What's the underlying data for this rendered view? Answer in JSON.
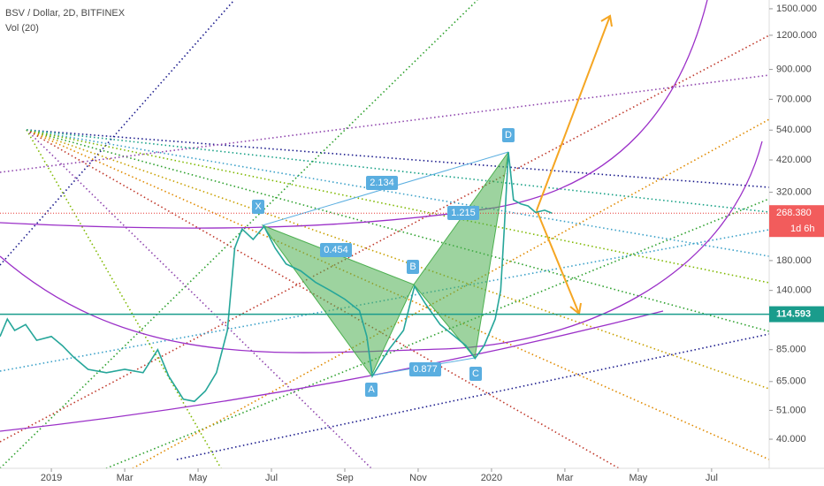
{
  "chart_data": {
    "type": "line",
    "title": "BSV / Dollar, 2D, BITFINEX",
    "indicator": "Vol (20)",
    "y_scale": "log",
    "color": "#26a69a",
    "xlim": [
      -1.4,
      19.57
    ],
    "ylim": [
      31.3,
      1615
    ],
    "xticks": [
      {
        "value": 0,
        "label": "2019"
      },
      {
        "value": 2,
        "label": "Mar"
      },
      {
        "value": 4,
        "label": "May"
      },
      {
        "value": 6,
        "label": "Jul"
      },
      {
        "value": 8,
        "label": "Sep"
      },
      {
        "value": 10,
        "label": "Nov"
      },
      {
        "value": 12,
        "label": "2020"
      },
      {
        "value": 14,
        "label": "Mar"
      },
      {
        "value": 16,
        "label": "May"
      },
      {
        "value": 18,
        "label": "Jul"
      }
    ],
    "yticks": [
      {
        "value": 40,
        "label": "40.000"
      },
      {
        "value": 51,
        "label": "51.000"
      },
      {
        "value": 65,
        "label": "65.000"
      },
      {
        "value": 85,
        "label": "85.000"
      },
      {
        "value": 140,
        "label": "140.000"
      },
      {
        "value": 180,
        "label": "180.000"
      },
      {
        "value": 320,
        "label": "320.000"
      },
      {
        "value": 420,
        "label": "420.000"
      },
      {
        "value": 540,
        "label": "540.000"
      },
      {
        "value": 700,
        "label": "700.000"
      },
      {
        "value": 900,
        "label": "900.000"
      },
      {
        "value": 1200,
        "label": "1200.000"
      },
      {
        "value": 1500,
        "label": "1500.000"
      }
    ],
    "x": [
      -1.4,
      -1.2,
      -1.0,
      -0.7,
      -0.4,
      0,
      0.3,
      0.6,
      1.0,
      1.5,
      2.0,
      2.5,
      2.9,
      3.2,
      3.6,
      3.9,
      4.2,
      4.5,
      4.8,
      5.0,
      5.2,
      5.5,
      5.8,
      6.1,
      6.4,
      6.8,
      7.2,
      7.6,
      8.0,
      8.4,
      8.6,
      8.75,
      9.2,
      9.6,
      9.9,
      10.2,
      10.6,
      11.0,
      11.3,
      11.55,
      11.8,
      12.1,
      12.25,
      12.35,
      12.46,
      12.6,
      12.8,
      13.0,
      13.2,
      13.45,
      13.65
    ],
    "values": [
      95,
      110,
      100,
      105,
      92,
      95,
      88,
      80,
      72,
      70,
      72,
      70,
      85,
      68,
      56,
      55,
      60,
      70,
      100,
      200,
      235,
      215,
      240,
      200,
      175,
      165,
      150,
      140,
      130,
      118,
      95,
      68,
      85,
      100,
      145,
      125,
      105,
      95,
      88,
      79,
      88,
      110,
      140,
      240,
      449,
      300,
      290,
      285,
      270,
      275,
      268.38
    ],
    "last_price": {
      "value": 268.38,
      "label": "268.380"
    },
    "countdown": "1d 6h",
    "level": {
      "value": 114.593,
      "label": "114.593"
    },
    "pattern_points": [
      "X",
      "A",
      "B",
      "C",
      "D"
    ],
    "pattern_ratios": [
      0.454,
      2.134,
      0.877,
      1.215
    ]
  }
}
